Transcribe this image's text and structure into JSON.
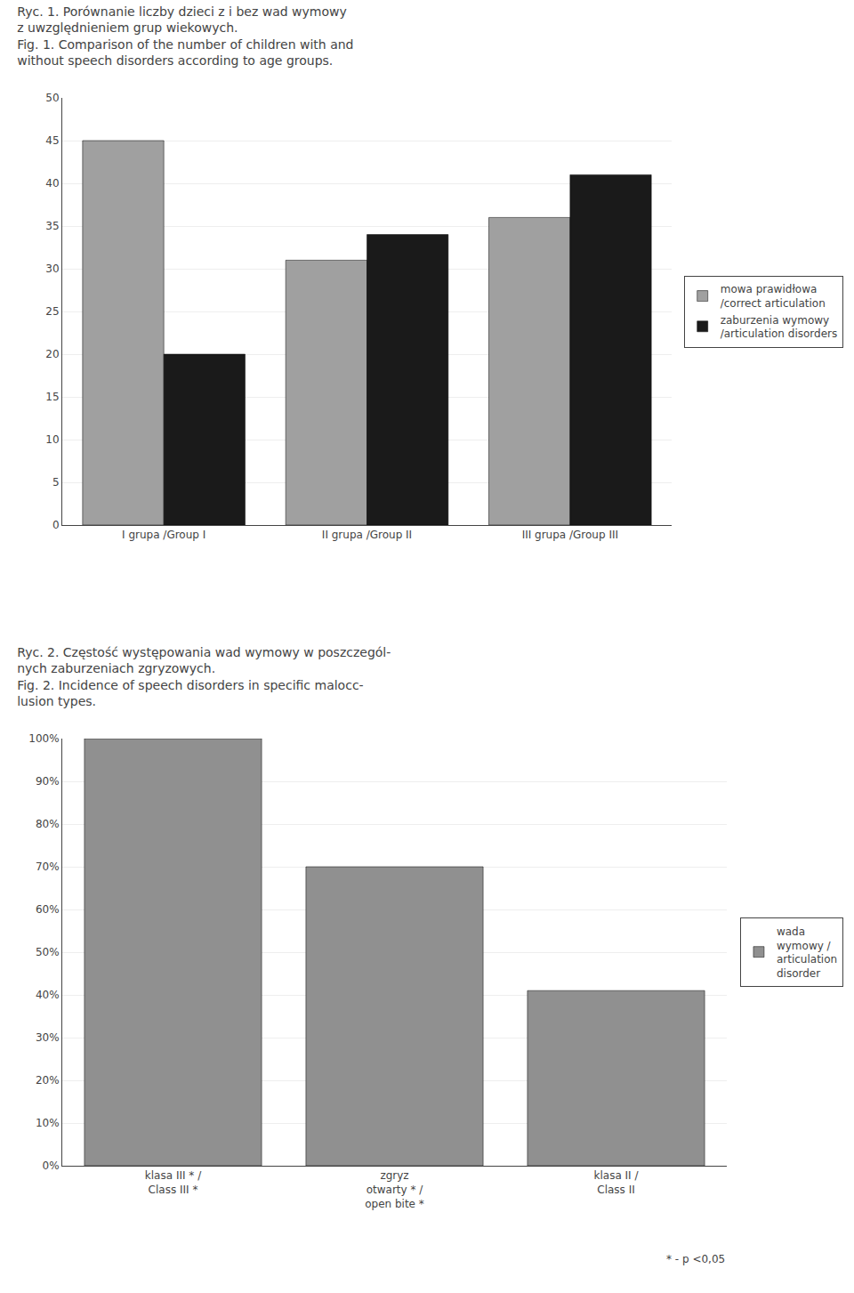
{
  "chart_data": [
    {
      "type": "bar",
      "title": "Ryc. 1. Porównanie liczby dzieci z i bez wad wymowy\nz uwzględnieniem grup wiekowych.\nFig. 1. Comparison of the number of children with and\nwithout speech disorders according to age groups.",
      "categories": [
        "I grupa /Group I",
        "II grupa /Group II",
        "III grupa /Group III"
      ],
      "series": [
        {
          "name": "mowa prawidłowa\n/correct articulation",
          "color": "#a0a0a0",
          "values": [
            45,
            31,
            36
          ]
        },
        {
          "name": "zaburzenia wymowy\n/articulation disorders",
          "color": "#1a1a1a",
          "values": [
            20,
            34,
            41
          ]
        }
      ],
      "ylim": [
        0,
        50
      ],
      "yticks": [
        0,
        5,
        10,
        15,
        20,
        25,
        30,
        35,
        40,
        45,
        50
      ],
      "grid": true,
      "legend": "right"
    },
    {
      "type": "bar",
      "title": "Ryc. 2. Częstość występowania wad wymowy w poszczegól-\nnych zaburzeniach zgryzowych.\nFig. 2. Incidence of speech disorders in specific malocc-\nlusion types.",
      "categories": [
        "klasa III * /\nClass III *",
        "zgryz\notwarty * /\nopen bite *",
        "klasa II /\nClass II"
      ],
      "series": [
        {
          "name": "wada\nwymowy /\narticulation\ndisorder",
          "color": "#909090",
          "values": [
            100,
            70,
            41
          ]
        }
      ],
      "ylim": [
        0,
        100
      ],
      "yticks": [
        {
          "value": 0,
          "label": "0%"
        },
        {
          "value": 10,
          "label": "10%"
        },
        {
          "value": 20,
          "label": "20%"
        },
        {
          "value": 30,
          "label": "30%"
        },
        {
          "value": 40,
          "label": "40%"
        },
        {
          "value": 50,
          "label": "50%"
        },
        {
          "value": 60,
          "label": "60%"
        },
        {
          "value": 70,
          "label": "70%"
        },
        {
          "value": 80,
          "label": "80%"
        },
        {
          "value": 90,
          "label": "90%"
        },
        {
          "value": 100,
          "label": "100%"
        }
      ],
      "grid": true,
      "legend": "right",
      "annotations": [
        {
          "text": "* - p <0,05"
        }
      ]
    }
  ]
}
